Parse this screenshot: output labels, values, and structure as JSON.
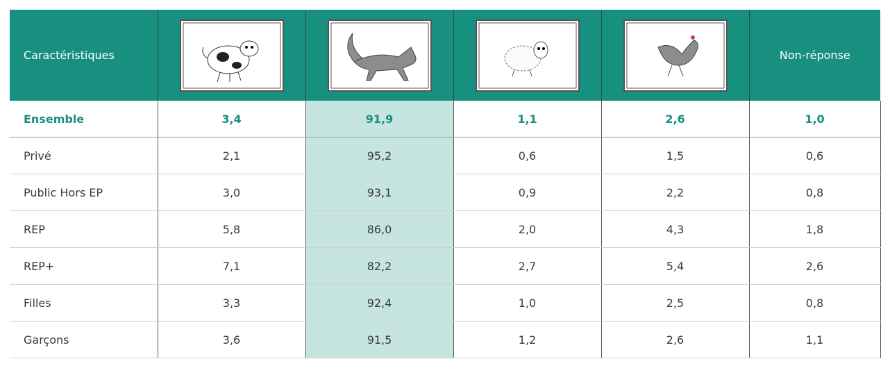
{
  "header": {
    "label": "Caractéristiques",
    "nonresponse": "Non-réponse"
  },
  "rows": [
    {
      "label": "Ensemble",
      "values": [
        "3,4",
        "91,9",
        "1,1",
        "2,6",
        "1,0"
      ]
    },
    {
      "label": "Privé",
      "values": [
        "2,1",
        "95,2",
        "0,6",
        "1,5",
        "0,6"
      ]
    },
    {
      "label": "Public Hors EP",
      "values": [
        "3,0",
        "93,1",
        "0,9",
        "2,2",
        "0,8"
      ]
    },
    {
      "label": "REP",
      "values": [
        "5,8",
        "86,0",
        "2,0",
        "4,3",
        "1,8"
      ]
    },
    {
      "label": "REP+",
      "values": [
        "7,1",
        "82,2",
        "2,7",
        "5,4",
        "2,6"
      ]
    },
    {
      "label": "Filles",
      "values": [
        "3,3",
        "92,4",
        "1,0",
        "2,5",
        "0,8"
      ]
    },
    {
      "label": "Garçons",
      "values": [
        "3,6",
        "91,5",
        "1,2",
        "2,6",
        "1,1"
      ]
    }
  ]
}
